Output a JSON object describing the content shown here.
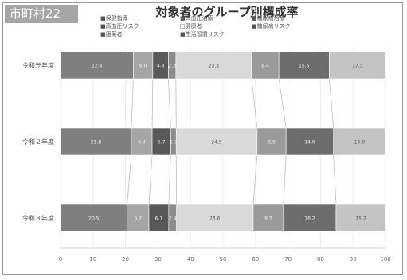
{
  "region_label": "市町村22",
  "chart_data": {
    "type": "bar",
    "orientation": "horizontal",
    "stacked": "percent",
    "title": "対象者のグループ別構成率",
    "xlim": [
      0,
      100
    ],
    "x_ticks": [
      "0",
      "10",
      "20",
      "30",
      "40",
      "50",
      "60",
      "70",
      "80",
      "90",
      "100"
    ],
    "categories": [
      "令和元年度",
      "令和２年度",
      "令和３年度"
    ],
    "legend_position": "top",
    "legend_columns": 3,
    "series": [
      {
        "name": "■保健指導",
        "color": "#7f7f7f",
        "values": [
          22.4,
          21.8,
          20.5
        ],
        "labels": [
          "22.4",
          "21.8",
          "20.5"
        ]
      },
      {
        "name": "■高血圧治療",
        "color": "#a5a5a5",
        "values": [
          6.0,
          6.4,
          6.7
        ],
        "labels": [
          "6.0",
          "6.4",
          "6.7"
        ]
      },
      {
        "name": "■糖尿病治療",
        "color": "#595959",
        "values": [
          4.8,
          5.7,
          6.1
        ],
        "labels": [
          "4.8",
          "5.7",
          "6.1"
        ]
      },
      {
        "name": "■高血圧リスク",
        "color": "#8c8c8c",
        "values": [
          2.3,
          1.7,
          2.4
        ],
        "labels": [
          "2.3",
          "1.7",
          "2.4"
        ]
      },
      {
        "name": "□健康者",
        "color": "#d9d9d9",
        "values": [
          23.3,
          24.9,
          23.6
        ],
        "labels": [
          "23.3",
          "24.9",
          "23.6"
        ]
      },
      {
        "name": "■糖尿病リスク",
        "color": "#9a9a9a",
        "values": [
          8.4,
          8.9,
          9.3
        ],
        "labels": [
          "8.4",
          "8.9",
          "9.3"
        ]
      },
      {
        "name": "■服薬者",
        "color": "#6d6d6d",
        "values": [
          15.5,
          14.6,
          16.2
        ],
        "labels": [
          "15.5",
          "14.6",
          "16.2"
        ]
      },
      {
        "name": "■生活習慣リスク",
        "color": "#c4c4c4",
        "values": [
          17.3,
          16.0,
          15.2
        ],
        "labels": [
          "17.3",
          "16.0",
          "15.2"
        ]
      }
    ]
  }
}
